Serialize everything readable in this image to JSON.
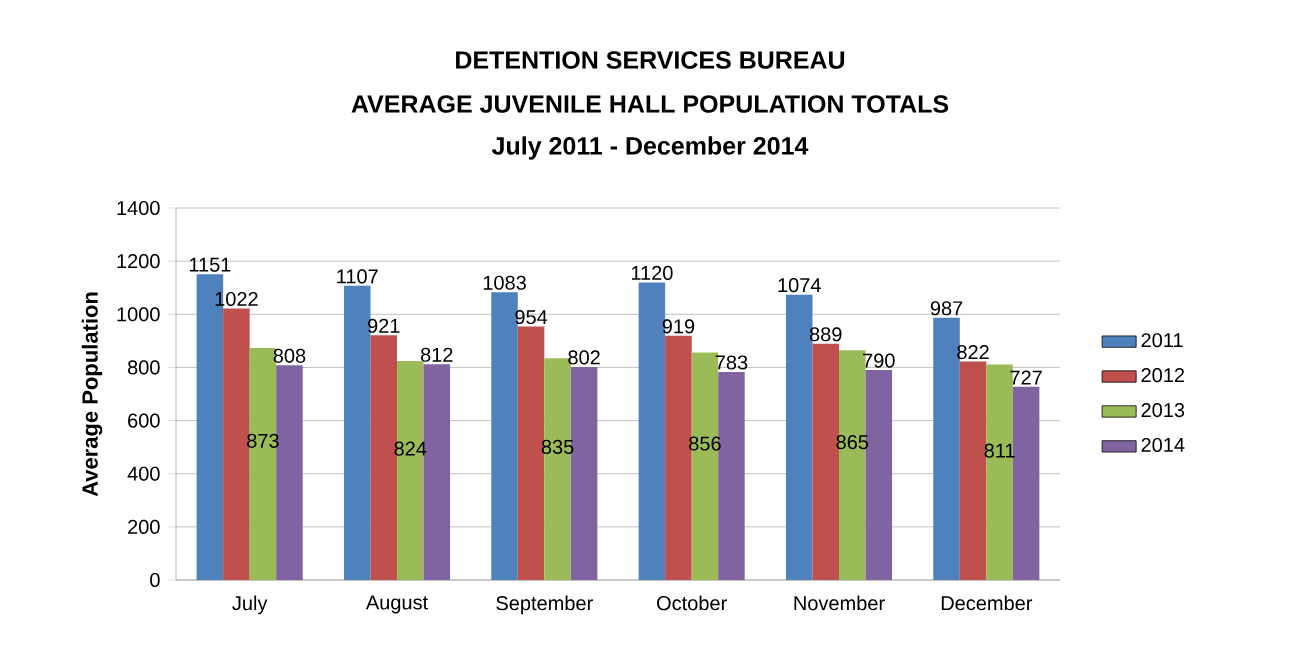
{
  "chart_data": {
    "type": "bar",
    "title": "DETENTION SERVICES BUREAU",
    "subtitle": "AVERAGE JUVENILE HALL POPULATION TOTALS",
    "annotations": [
      "July 2011 - December 2014"
    ],
    "categories": [
      "July",
      "August",
      "September",
      "October",
      "November",
      "December"
    ],
    "series": [
      {
        "name": "2011",
        "color": "#4f81bd",
        "values": [
          1151,
          1107,
          1083,
          1120,
          1074,
          987
        ]
      },
      {
        "name": "2012",
        "color": "#c0504d",
        "values": [
          1022,
          921,
          954,
          919,
          889,
          822
        ]
      },
      {
        "name": "2013",
        "color": "#9bbb59",
        "values": [
          873,
          824,
          835,
          856,
          865,
          811
        ]
      },
      {
        "name": "2014",
        "color": "#8064a2",
        "values": [
          808,
          812,
          802,
          783,
          790,
          727
        ]
      }
    ],
    "ylabel": "Average Population",
    "ylim": [
      0,
      1400
    ],
    "yticks": [
      0,
      200,
      400,
      600,
      800,
      1000,
      1200,
      1400
    ],
    "grid": "y",
    "legend": "right",
    "data_labels": true
  }
}
